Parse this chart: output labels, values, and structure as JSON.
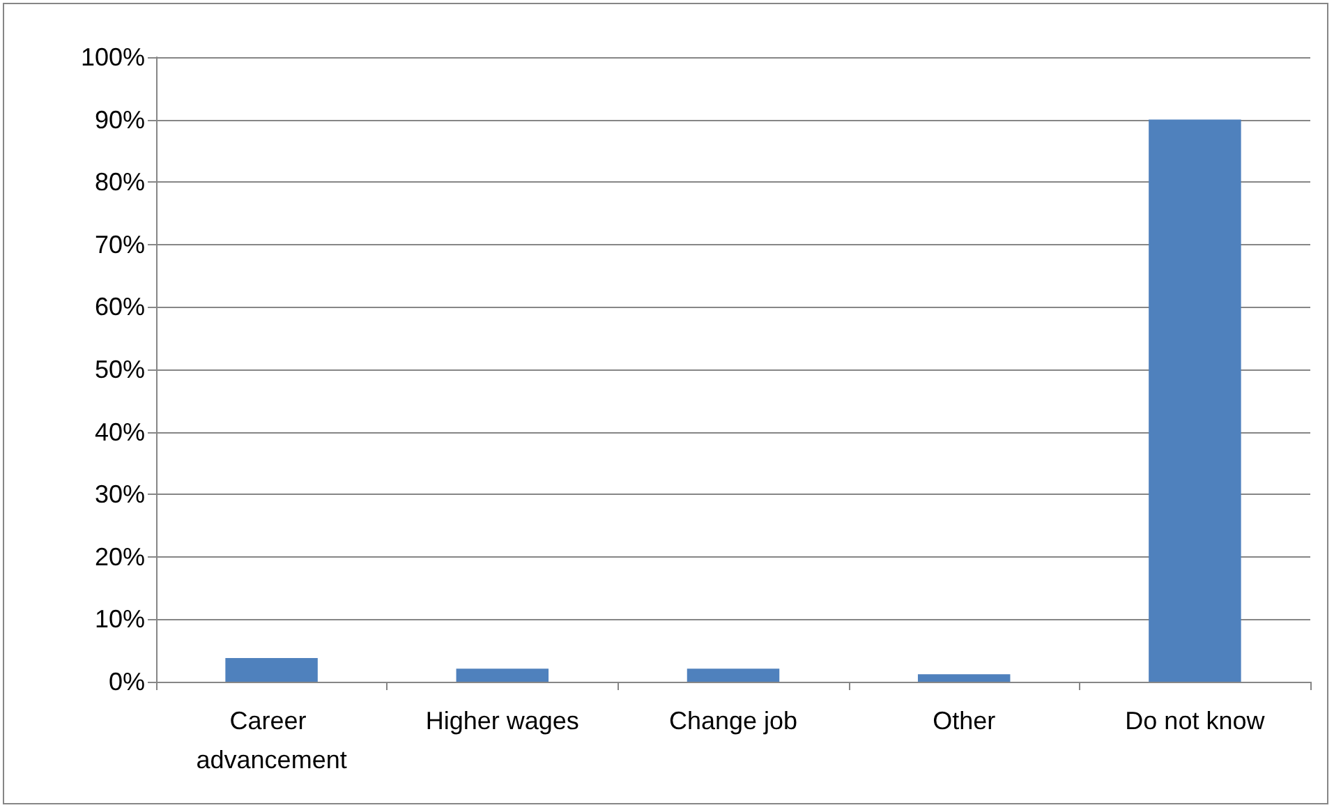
{
  "chart_data": {
    "type": "bar",
    "categories": [
      "Career advancement",
      "Higher wages",
      "Change job",
      "Other",
      "Do not know"
    ],
    "values": [
      3.8,
      2.1,
      2.1,
      1.2,
      90
    ],
    "color": "#4f81bd",
    "ylim": [
      0,
      100
    ],
    "yticks": [
      {
        "value": 0,
        "label": "0%"
      },
      {
        "value": 10,
        "label": "10%"
      },
      {
        "value": 20,
        "label": "20%"
      },
      {
        "value": 30,
        "label": "30%"
      },
      {
        "value": 40,
        "label": "40%"
      },
      {
        "value": 50,
        "label": "50%"
      },
      {
        "value": 60,
        "label": "60%"
      },
      {
        "value": 70,
        "label": "70%"
      },
      {
        "value": 80,
        "label": "80%"
      },
      {
        "value": 90,
        "label": "90%"
      },
      {
        "value": 100,
        "label": "100%"
      }
    ],
    "grid": "y"
  }
}
